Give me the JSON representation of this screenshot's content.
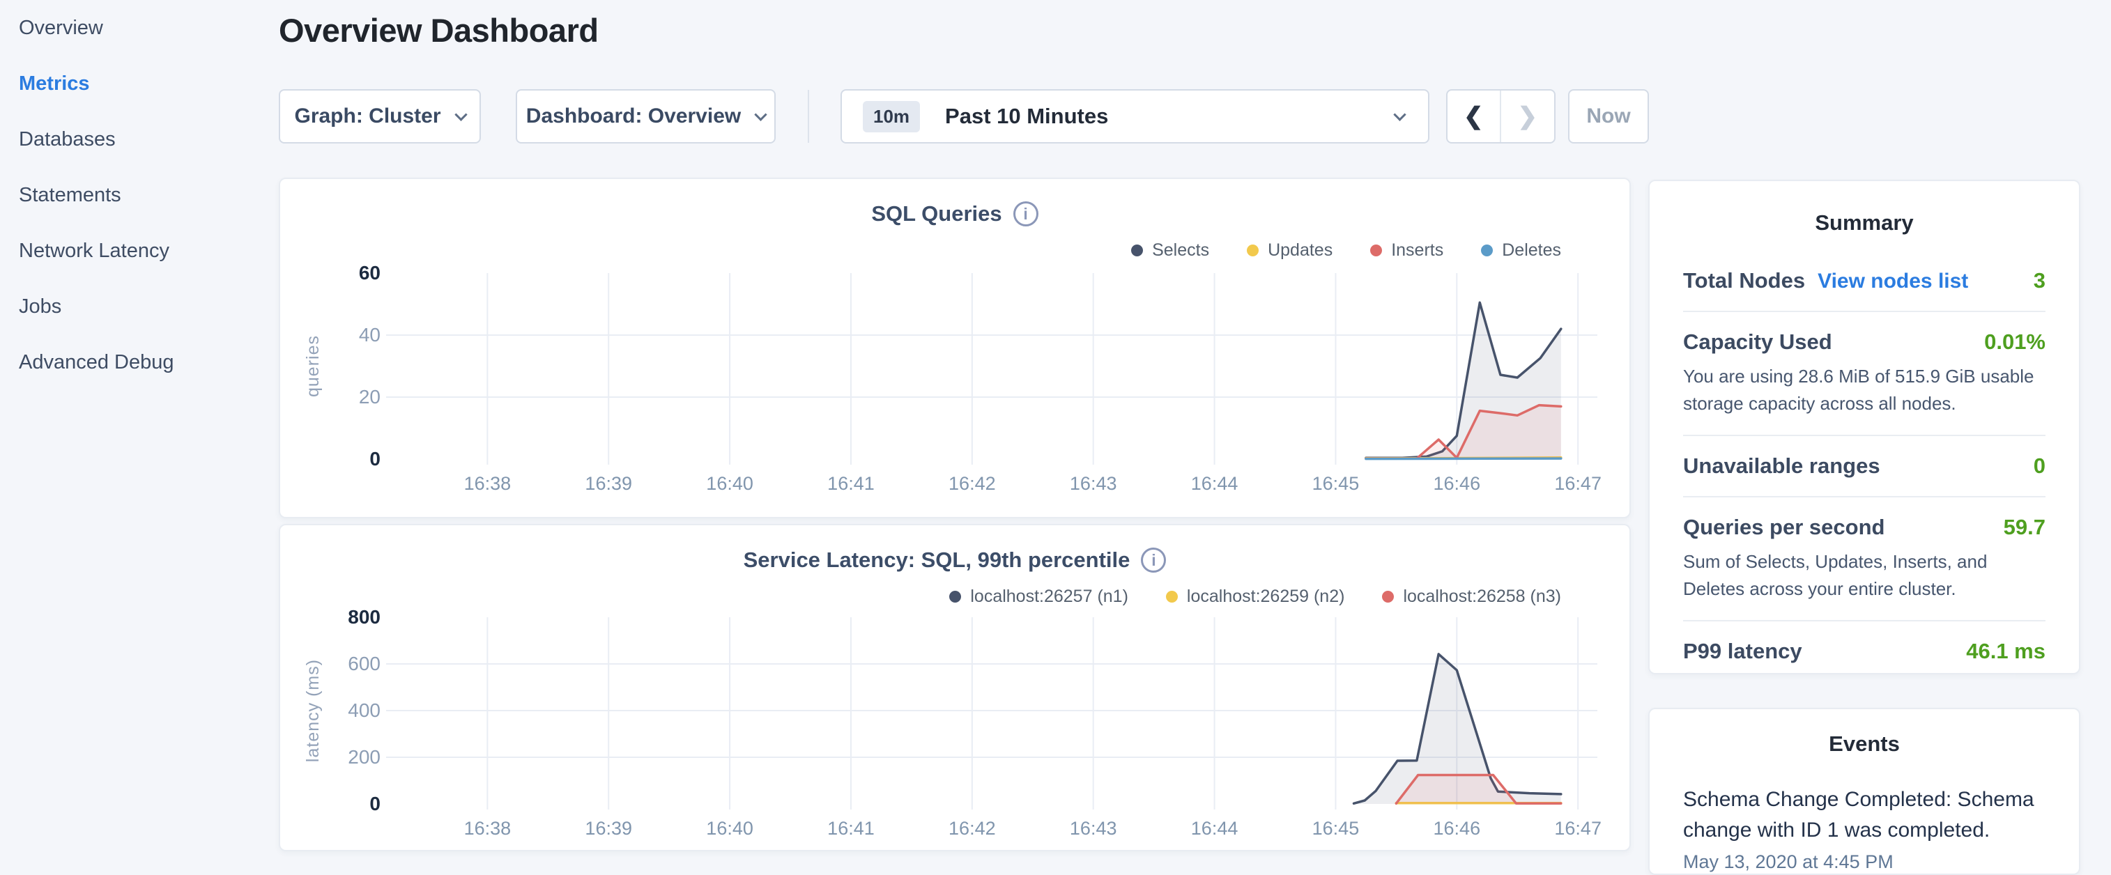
{
  "header": {
    "title": "Overview Dashboard"
  },
  "sidebar": {
    "items": [
      {
        "label": "Overview",
        "active": false
      },
      {
        "label": "Metrics",
        "active": true
      },
      {
        "label": "Databases",
        "active": false
      },
      {
        "label": "Statements",
        "active": false
      },
      {
        "label": "Network Latency",
        "active": false
      },
      {
        "label": "Jobs",
        "active": false
      },
      {
        "label": "Advanced Debug",
        "active": false
      }
    ]
  },
  "controls": {
    "graph_label": "Graph: Cluster",
    "dashboard_label": "Dashboard: Overview",
    "time_badge": "10m",
    "time_label": "Past 10 Minutes",
    "prev_icon": "❮",
    "next_icon": "❯",
    "now_label": "Now"
  },
  "colors": {
    "accent_blue": "#2b7ce0",
    "value_green": "#4e9f1f",
    "series_navy": "#47536b",
    "series_yellow": "#f2c94c",
    "series_red": "#dd6b68",
    "series_blue": "#5b9bc8"
  },
  "summary": {
    "title": "Summary",
    "rows": [
      {
        "label": "Total Nodes",
        "link": "View nodes list",
        "value": "3"
      },
      {
        "label": "Capacity Used",
        "value": "0.01%",
        "desc": "You are using 28.6 MiB of 515.9 GiB usable storage capacity across all nodes."
      },
      {
        "label": "Unavailable ranges",
        "value": "0"
      },
      {
        "label": "Queries per second",
        "value": "59.7",
        "desc": "Sum of Selects, Updates, Inserts, and Deletes across your entire cluster."
      },
      {
        "label": "P99 latency",
        "value": "46.1 ms"
      }
    ]
  },
  "events": {
    "title": "Events",
    "items": [
      {
        "message": "Schema Change Completed: Schema change with ID 1 was completed.",
        "timestamp": "May 13, 2020 at 4:45 PM"
      }
    ]
  },
  "chart_data": [
    {
      "type": "area",
      "title": "SQL Queries",
      "legend_position": "top-right",
      "grid": true,
      "x_axis": {
        "min": 37.21,
        "max": 47.16,
        "tick_values": [
          38,
          39,
          40,
          41,
          42,
          43,
          44,
          45,
          46,
          47
        ],
        "tick_labels": [
          "16:38",
          "16:39",
          "16:40",
          "16:41",
          "16:42",
          "16:43",
          "16:44",
          "16:45",
          "16:46",
          "16:47"
        ]
      },
      "y_axis": {
        "min": 0,
        "max": 60,
        "ticks": [
          0,
          20,
          40,
          60
        ],
        "label": "queries"
      },
      "series": [
        {
          "name": "Selects",
          "color": "#47536b",
          "points": [
            [
              45.25,
              0.4
            ],
            [
              45.55,
              0.4
            ],
            [
              45.75,
              0.8
            ],
            [
              45.88,
              2.5
            ],
            [
              46.0,
              7.5
            ],
            [
              46.19,
              50.5
            ],
            [
              46.36,
              27.2
            ],
            [
              46.5,
              26.3
            ],
            [
              46.69,
              32.6
            ],
            [
              46.86,
              42
            ]
          ]
        },
        {
          "name": "Updates",
          "color": "#f2c94c",
          "points": [
            [
              45.25,
              0.3
            ],
            [
              45.8,
              0.3
            ],
            [
              46.86,
              0.5
            ]
          ]
        },
        {
          "name": "Inserts",
          "color": "#dd6b68",
          "points": [
            [
              45.25,
              0.15
            ],
            [
              45.67,
              0.2
            ],
            [
              45.85,
              6.3
            ],
            [
              46.0,
              0.4
            ],
            [
              46.19,
              15.6
            ],
            [
              46.36,
              14.8
            ],
            [
              46.5,
              14.1
            ],
            [
              46.68,
              17.4
            ],
            [
              46.86,
              17
            ]
          ]
        },
        {
          "name": "Deletes",
          "color": "#5b9bc8",
          "points": [
            [
              45.25,
              0.1
            ],
            [
              46.86,
              0.2
            ]
          ]
        }
      ]
    },
    {
      "type": "area",
      "title": "Service Latency: SQL, 99th percentile",
      "legend_position": "top-right",
      "grid": true,
      "x_axis": {
        "min": 37.21,
        "max": 47.16,
        "tick_values": [
          38,
          39,
          40,
          41,
          42,
          43,
          44,
          45,
          46,
          47
        ],
        "tick_labels": [
          "16:38",
          "16:39",
          "16:40",
          "16:41",
          "16:42",
          "16:43",
          "16:44",
          "16:45",
          "16:46",
          "16:47"
        ]
      },
      "y_axis": {
        "min": 0,
        "max": 800,
        "ticks": [
          0,
          200,
          400,
          600,
          800
        ],
        "label": "latency (ms)"
      },
      "series": [
        {
          "name": "localhost:26257 (n1)",
          "color": "#47536b",
          "points": [
            [
              45.15,
              2
            ],
            [
              45.24,
              15
            ],
            [
              45.33,
              55
            ],
            [
              45.51,
              185
            ],
            [
              45.67,
              186
            ],
            [
              45.85,
              642
            ],
            [
              46.0,
              573
            ],
            [
              46.28,
              110
            ],
            [
              46.34,
              53
            ],
            [
              46.6,
              46
            ],
            [
              46.86,
              42
            ]
          ]
        },
        {
          "name": "localhost:26259 (n2)",
          "color": "#f2c94c",
          "points": [
            [
              45.5,
              4
            ],
            [
              46.86,
              4
            ]
          ]
        },
        {
          "name": "localhost:26258 (n3)",
          "color": "#dd6b68",
          "points": [
            [
              45.5,
              2
            ],
            [
              45.68,
              124
            ],
            [
              46.3,
              124
            ],
            [
              46.49,
              2
            ],
            [
              46.86,
              2
            ]
          ]
        }
      ]
    }
  ]
}
